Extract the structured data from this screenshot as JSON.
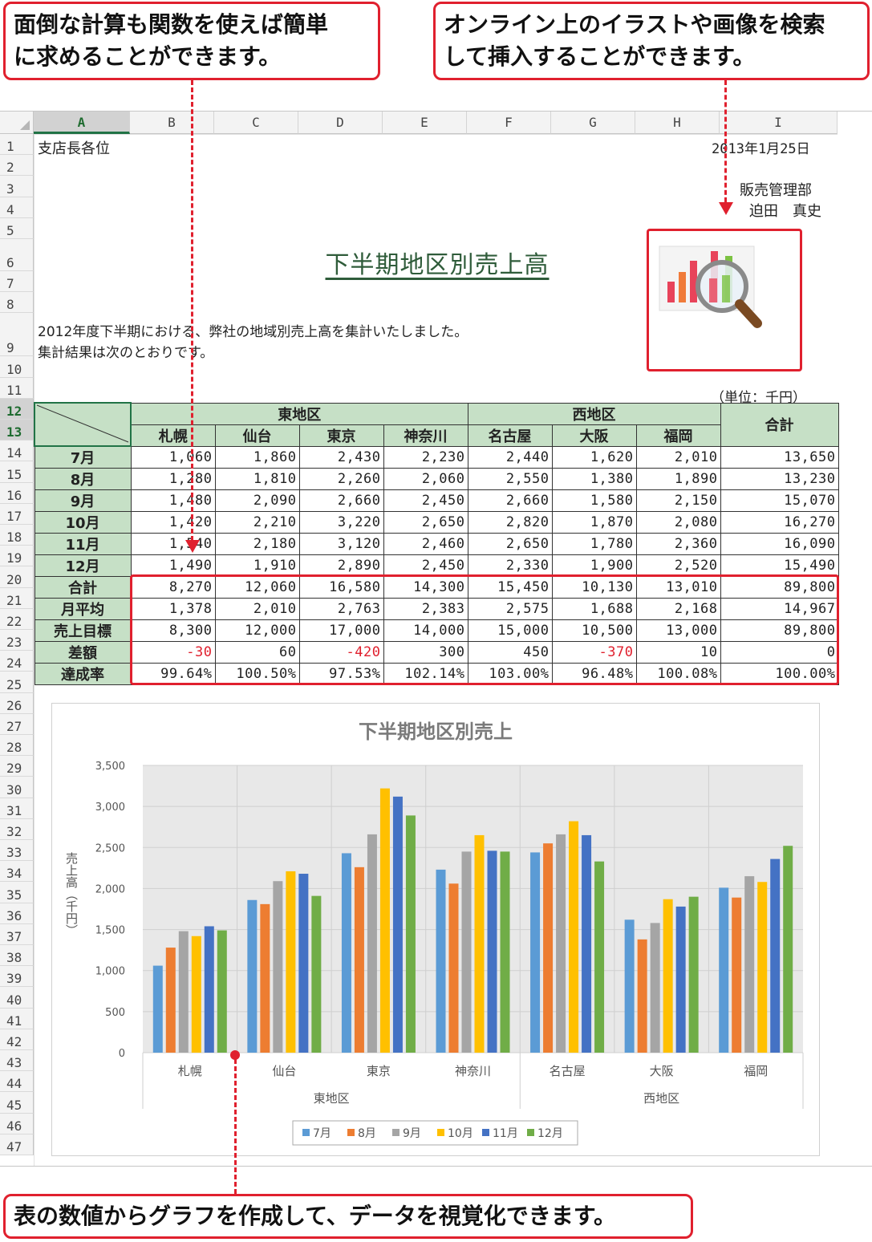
{
  "callouts": {
    "functions": [
      "面倒な計算も関数を使えば簡単",
      "に求めることができます。"
    ],
    "online_images": [
      "オンライン上のイラストや画像を検索",
      "して挿入することができます。"
    ],
    "chart": "表の数値からグラフを作成して、データを視覚化できます。"
  },
  "sheet": {
    "selected_column": "A",
    "selected_rows": [
      "12",
      "13"
    ],
    "columns": [
      "A",
      "B",
      "C",
      "D",
      "E",
      "F",
      "G",
      "H",
      "I"
    ],
    "rows": [
      "1",
      "2",
      "3",
      "4",
      "5",
      "6",
      "7",
      "8",
      "9",
      "10",
      "11",
      "12",
      "13",
      "14",
      "15",
      "16",
      "17",
      "18",
      "19",
      "20",
      "21",
      "22",
      "23",
      "24",
      "25",
      "26",
      "27",
      "28",
      "29",
      "30",
      "31",
      "32",
      "33",
      "34",
      "35",
      "36",
      "37",
      "38",
      "39",
      "40",
      "41",
      "42",
      "43",
      "44",
      "45",
      "46",
      "47"
    ],
    "recipient": "支店長各位",
    "date": "2013年1月25日",
    "department": "販売管理部",
    "author": "迫田　真史",
    "title": "下半期地区別売上高",
    "intro_line1": "2012年度下半期における、弊社の地域別売上高を集計いたしました。",
    "intro_line2": "集計結果は次のとおりです。",
    "unit_note": "（単位：千円）"
  },
  "table": {
    "region_east": "東地区",
    "region_west": "西地区",
    "total_header": "合計",
    "branches": [
      "札幌",
      "仙台",
      "東京",
      "神奈川",
      "名古屋",
      "大阪",
      "福岡"
    ],
    "rows": [
      {
        "label": "7月",
        "values": [
          "1,060",
          "1,860",
          "2,430",
          "2,230",
          "2,440",
          "1,620",
          "2,010",
          "13,650"
        ]
      },
      {
        "label": "8月",
        "values": [
          "1,280",
          "1,810",
          "2,260",
          "2,060",
          "2,550",
          "1,380",
          "1,890",
          "13,230"
        ]
      },
      {
        "label": "9月",
        "values": [
          "1,480",
          "2,090",
          "2,660",
          "2,450",
          "2,660",
          "1,580",
          "2,150",
          "15,070"
        ]
      },
      {
        "label": "10月",
        "values": [
          "1,420",
          "2,210",
          "3,220",
          "2,650",
          "2,820",
          "1,870",
          "2,080",
          "16,270"
        ]
      },
      {
        "label": "11月",
        "values": [
          "1,540",
          "2,180",
          "3,120",
          "2,460",
          "2,650",
          "1,780",
          "2,360",
          "16,090"
        ]
      },
      {
        "label": "12月",
        "values": [
          "1,490",
          "1,910",
          "2,890",
          "2,450",
          "2,330",
          "1,900",
          "2,520",
          "15,490"
        ]
      },
      {
        "label": "合計",
        "values": [
          "8,270",
          "12,060",
          "16,580",
          "14,300",
          "15,450",
          "10,130",
          "13,010",
          "89,800"
        ]
      },
      {
        "label": "月平均",
        "values": [
          "1,378",
          "2,010",
          "2,763",
          "2,383",
          "2,575",
          "1,688",
          "2,168",
          "14,967"
        ]
      },
      {
        "label": "売上目標",
        "values": [
          "8,300",
          "12,000",
          "17,000",
          "14,000",
          "15,000",
          "10,500",
          "13,000",
          "89,800"
        ]
      },
      {
        "label": "差額",
        "values": [
          "-30",
          "60",
          "-420",
          "300",
          "450",
          "-370",
          "10",
          "0"
        ]
      },
      {
        "label": "達成率",
        "values": [
          "99.64%",
          "100.50%",
          "97.53%",
          "102.14%",
          "103.00%",
          "96.48%",
          "100.08%",
          "100.00%"
        ]
      }
    ]
  },
  "picture": {
    "icon": "chart-magnifier-icon"
  },
  "chart_data": {
    "type": "bar",
    "title": "下半期地区別売上",
    "ylabel": "売上高（千円）",
    "xlabel": "",
    "categories": [
      "札幌",
      "仙台",
      "東京",
      "神奈川",
      "名古屋",
      "大阪",
      "福岡"
    ],
    "category_groups": [
      {
        "name": "東地区",
        "members": [
          "札幌",
          "仙台",
          "東京",
          "神奈川"
        ]
      },
      {
        "name": "西地区",
        "members": [
          "名古屋",
          "大阪",
          "福岡"
        ]
      }
    ],
    "series": [
      {
        "name": "7月",
        "color": "#5b9bd5",
        "values": [
          1060,
          1860,
          2430,
          2230,
          2440,
          1620,
          2010
        ]
      },
      {
        "name": "8月",
        "color": "#ed7d31",
        "values": [
          1280,
          1810,
          2260,
          2060,
          2550,
          1380,
          1890
        ]
      },
      {
        "name": "9月",
        "color": "#a5a5a5",
        "values": [
          1480,
          2090,
          2660,
          2450,
          2660,
          1580,
          2150
        ]
      },
      {
        "name": "10月",
        "color": "#ffc000",
        "values": [
          1420,
          2210,
          3220,
          2650,
          2820,
          1870,
          2080
        ]
      },
      {
        "name": "11月",
        "color": "#4472c4",
        "values": [
          1540,
          2180,
          3120,
          2460,
          2650,
          1780,
          2360
        ]
      },
      {
        "name": "12月",
        "color": "#70ad47",
        "values": [
          1490,
          1910,
          2890,
          2450,
          2330,
          1900,
          2520
        ]
      }
    ],
    "yticks": [
      "0",
      "500",
      "1,000",
      "1,500",
      "2,000",
      "2,500",
      "3,000",
      "3,500"
    ],
    "ylim": [
      0,
      3500
    ],
    "grid": true,
    "plot_background": "#e8e8e8",
    "legend": "bottom"
  },
  "colors": {
    "accent": "#e0202e",
    "header_fill": "#c6e0c6",
    "excel_green": "#217346"
  }
}
